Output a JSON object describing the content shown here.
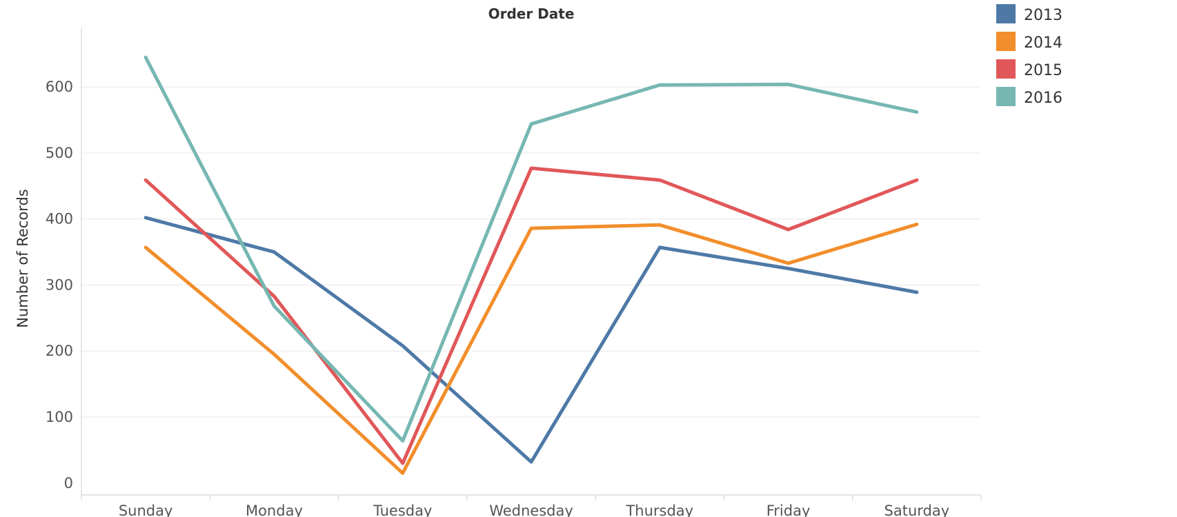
{
  "chart_data": {
    "type": "line",
    "title": "Order Date",
    "xlabel": "",
    "ylabel": "Number of Records",
    "categories": [
      "Sunday",
      "Monday",
      "Tuesday",
      "Wednesday",
      "Thursday",
      "Friday",
      "Saturday"
    ],
    "yticks": [
      0,
      100,
      200,
      300,
      400,
      500,
      600
    ],
    "ylim": [
      -18,
      690
    ],
    "grid": true,
    "legend_position": "top-right",
    "series": [
      {
        "name": "2013",
        "color": "#4e79a7",
        "values": [
          402,
          350,
          208,
          32,
          357,
          325,
          289
        ]
      },
      {
        "name": "2014",
        "color": "#f28e2b",
        "values": [
          357,
          195,
          15,
          386,
          391,
          333,
          392
        ]
      },
      {
        "name": "2015",
        "color": "#e15759",
        "values": [
          459,
          283,
          30,
          477,
          459,
          384,
          459
        ]
      },
      {
        "name": "2016",
        "color": "#76b7b2",
        "values": [
          645,
          268,
          64,
          544,
          603,
          604,
          562
        ]
      }
    ]
  }
}
